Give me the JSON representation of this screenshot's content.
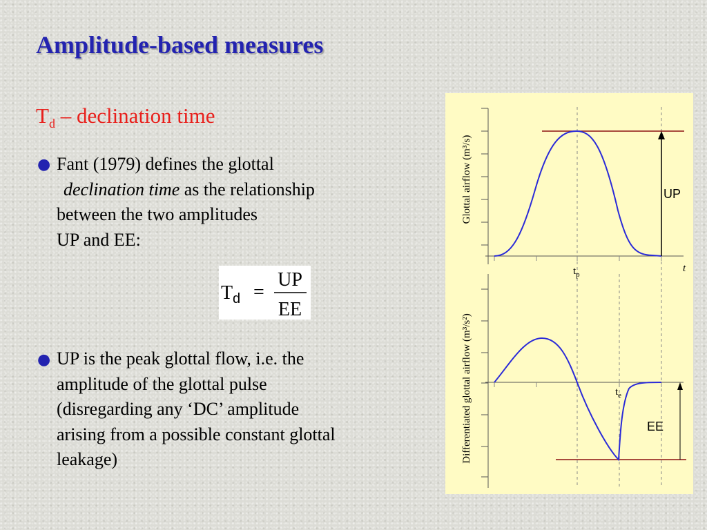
{
  "slide": {
    "title": "Amplitude-based measures",
    "subheading": {
      "symbol": "T",
      "subscript": "d",
      "text": " – declination time"
    },
    "bullet1": {
      "line1": "Fant (1979) defines the glottal",
      "line2_emphasis": "declination time",
      "line2_rest": " as the relationship",
      "line3": "between the two amplitudes",
      "line4": "UP and EE:"
    },
    "formula": {
      "lhs_symbol": "T",
      "lhs_subscript": "d",
      "equals": "=",
      "numerator": "UP",
      "denominator": "EE"
    },
    "bullet2": {
      "lines": [
        "UP is the peak glottal flow, i.e. the",
        "amplitude of the glottal pulse",
        "(disregarding any ‘DC’ amplitude",
        "arising from a possible constant glottal",
        "leakage)"
      ]
    }
  },
  "figure": {
    "top_plot": {
      "ylabel": "Glottal airflow (m³/s)",
      "xlabel": "t",
      "tick_symbol": "t",
      "tick_subscript": "p",
      "amplitude_label": "UP"
    },
    "bottom_plot": {
      "ylabel": "Differentiated glottal airflow (m³/s²)",
      "tick_symbol": "t",
      "tick_subscript": "e",
      "amplitude_label": "EE"
    },
    "colors": {
      "curve": "#2a2ad8",
      "reference_line": "#8b1010",
      "background": "#fffbc4",
      "title": "#2323b0",
      "subheading": "#e8201c"
    }
  }
}
